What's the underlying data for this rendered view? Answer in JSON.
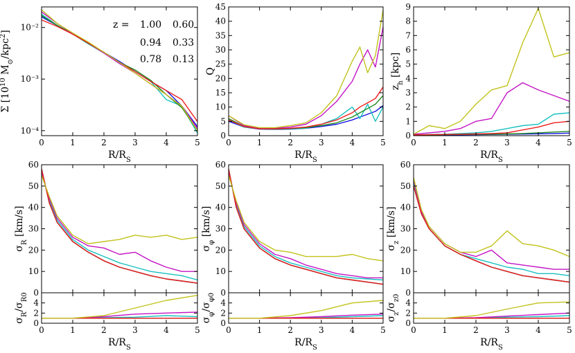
{
  "figure": {
    "xlabel": "R/R_S"
  },
  "legend": {
    "title": "z =",
    "entries": [
      {
        "label": "1.00",
        "color": "#1414e6"
      },
      {
        "label": "0.60",
        "color": "#18c0c0"
      },
      {
        "label": "0.94",
        "color": "#1f8a1f"
      },
      {
        "label": "0.33",
        "color": "#c414c4"
      },
      {
        "label": "0.78",
        "color": "#ee1c1c"
      },
      {
        "label": "0.13",
        "color": "#c2c21c"
      }
    ]
  },
  "chart_data": [
    {
      "id": "sigma",
      "type": "line",
      "ylabel": "Σ [10^10 M⊙/kpc²]",
      "xlim": [
        0,
        5
      ],
      "yscale": "log",
      "ylim": [
        8e-05,
        0.025
      ],
      "xticks": [
        0,
        1,
        2,
        3,
        4,
        5
      ],
      "yticks": [
        {
          "v": 0.0001,
          "label": "10⁻⁴"
        },
        {
          "v": 0.001,
          "label": "10⁻³"
        },
        {
          "v": 0.01,
          "label": "10⁻²"
        }
      ],
      "x": [
        0,
        0.5,
        1,
        1.5,
        2,
        2.5,
        3,
        3.5,
        4,
        4.5,
        5
      ],
      "series": [
        {
          "name": "1.00",
          "values": [
            0.016,
            0.011,
            0.0075,
            0.005,
            0.0033,
            0.0022,
            0.0014,
            0.0009,
            0.0006,
            0.0003,
            0.00012
          ]
        },
        {
          "name": "0.60",
          "values": [
            0.018,
            0.011,
            0.0075,
            0.0048,
            0.0032,
            0.002,
            0.0014,
            0.0009,
            0.0004,
            0.0003,
            9e-05
          ]
        },
        {
          "name": "0.94",
          "values": [
            0.017,
            0.011,
            0.0074,
            0.0049,
            0.0033,
            0.0021,
            0.0015,
            0.00095,
            0.0005,
            0.00028,
            0.0001
          ]
        },
        {
          "name": "0.33",
          "values": [
            0.02,
            0.012,
            0.0076,
            0.005,
            0.0032,
            0.002,
            0.0013,
            0.0008,
            0.0005,
            0.0003,
            0.00011
          ]
        },
        {
          "name": "0.78",
          "values": [
            0.014,
            0.0105,
            0.0074,
            0.005,
            0.0033,
            0.0021,
            0.0014,
            0.0009,
            0.0006,
            0.0004,
            0.00015
          ]
        },
        {
          "name": "0.13",
          "values": [
            0.022,
            0.012,
            0.0078,
            0.0052,
            0.0033,
            0.0021,
            0.0013,
            0.0008,
            0.0005,
            0.0003,
            0.0001
          ]
        }
      ]
    },
    {
      "id": "Q",
      "type": "line",
      "ylabel": "Q",
      "xlim": [
        0,
        5
      ],
      "ylim": [
        0,
        45
      ],
      "xticks": [
        0,
        1,
        2,
        3,
        4,
        5
      ],
      "yticks": [
        0,
        5,
        10,
        15,
        20,
        25,
        30,
        35,
        40,
        45
      ],
      "x": [
        0,
        0.5,
        1,
        1.5,
        2,
        2.5,
        3,
        3.5,
        4,
        4.25,
        4.5,
        4.75,
        5
      ],
      "series": [
        {
          "name": "1.00",
          "values": [
            5,
            3,
            2.3,
            2.2,
            2.3,
            2.6,
            3.2,
            4,
            5.5,
            6.5,
            7.5,
            8.5,
            10.5
          ]
        },
        {
          "name": "0.60",
          "values": [
            5.5,
            3,
            2.4,
            2.3,
            2.4,
            2.6,
            4,
            6,
            10,
            6,
            11,
            5,
            10
          ]
        },
        {
          "name": "0.94",
          "values": [
            6,
            3.2,
            2.4,
            2.3,
            2.5,
            2.8,
            3.5,
            4.5,
            6.5,
            8,
            9.5,
            11,
            14
          ]
        },
        {
          "name": "0.33",
          "values": [
            7,
            3.5,
            2.5,
            2.6,
            3,
            4,
            7,
            12,
            19,
            25,
            30,
            24,
            38
          ]
        },
        {
          "name": "0.78",
          "values": [
            5.5,
            3.2,
            2.4,
            2.4,
            2.6,
            3,
            4,
            5.5,
            8,
            10,
            11.5,
            13,
            17
          ]
        },
        {
          "name": "0.13",
          "values": [
            7,
            3.8,
            2.8,
            2.8,
            3.5,
            4.5,
            8,
            14,
            26,
            31,
            22,
            28,
            44
          ]
        }
      ]
    },
    {
      "id": "zh",
      "type": "line",
      "ylabel": "z_h [kpc]",
      "xlim": [
        0,
        5
      ],
      "ylim": [
        0,
        9
      ],
      "xticks": [
        0,
        1,
        2,
        3,
        4,
        5
      ],
      "yticks": [
        0,
        1,
        2,
        3,
        4,
        5,
        6,
        7,
        8,
        9
      ],
      "x": [
        0,
        0.5,
        1,
        1.5,
        2,
        2.5,
        3,
        3.5,
        4,
        4.5,
        5
      ],
      "series": [
        {
          "name": "1.00",
          "values": [
            0.05,
            0.05,
            0.06,
            0.06,
            0.07,
            0.08,
            0.1,
            0.11,
            0.13,
            0.15,
            0.18
          ]
        },
        {
          "name": "0.60",
          "values": [
            0.05,
            0.08,
            0.1,
            0.15,
            0.2,
            0.3,
            0.5,
            0.7,
            0.8,
            1.5,
            1.6
          ]
        },
        {
          "name": "0.94",
          "values": [
            0.05,
            0.06,
            0.07,
            0.08,
            0.09,
            0.1,
            0.12,
            0.15,
            0.2,
            0.25,
            0.3
          ]
        },
        {
          "name": "0.33",
          "values": [
            0.1,
            0.2,
            0.3,
            0.5,
            1,
            1.2,
            3,
            3.7,
            3.2,
            2.8,
            2.4
          ]
        },
        {
          "name": "0.78",
          "values": [
            0.05,
            0.07,
            0.08,
            0.1,
            0.12,
            0.15,
            0.2,
            0.4,
            0.6,
            0.9,
            1.0
          ]
        },
        {
          "name": "0.13",
          "values": [
            0.1,
            0.7,
            0.5,
            1,
            2.2,
            3.2,
            3.5,
            6.5,
            8.9,
            5.5,
            5.8
          ]
        }
      ]
    },
    {
      "id": "sigR",
      "type": "line",
      "ylabel": "σ_R [km/s]",
      "xlim": [
        0,
        5
      ],
      "ylim": [
        0,
        60
      ],
      "xticks": [
        0,
        1,
        2,
        3,
        4,
        5
      ],
      "yticks": [
        0,
        10,
        20,
        30,
        40,
        50,
        60
      ],
      "x": [
        0,
        0.25,
        0.5,
        1,
        1.5,
        2,
        2.5,
        3,
        3.5,
        4,
        4.5,
        5
      ],
      "series": [
        {
          "name": "1.00",
          "values": [
            58,
            42,
            33,
            24,
            19,
            15,
            12,
            10,
            8,
            6.5,
            5.5,
            4.5
          ]
        },
        {
          "name": "0.60",
          "values": [
            57,
            43,
            34,
            25,
            20,
            17,
            14,
            12,
            10,
            9,
            8,
            6
          ]
        },
        {
          "name": "0.94",
          "values": [
            58,
            42,
            33,
            24,
            19,
            15,
            12,
            10,
            8,
            6.5,
            5.5,
            4.5
          ]
        },
        {
          "name": "0.33",
          "values": [
            56,
            44,
            35,
            26,
            22,
            21,
            18,
            19,
            15,
            12,
            10,
            10
          ]
        },
        {
          "name": "0.78",
          "values": [
            58,
            42,
            33,
            24,
            19,
            15,
            12,
            10,
            8,
            6.5,
            5.5,
            4.5
          ]
        },
        {
          "name": "0.13",
          "values": [
            55,
            45,
            36,
            27,
            23,
            24,
            25,
            27,
            26,
            27,
            25,
            26
          ]
        }
      ]
    },
    {
      "id": "sigRratio",
      "type": "line",
      "ylabel": "σ_R/σ_R0",
      "xlim": [
        0,
        5
      ],
      "ylim": [
        0,
        6
      ],
      "xticks": [
        0,
        1,
        2,
        3,
        4,
        5
      ],
      "yticks": [
        0,
        2,
        4
      ],
      "x": [
        0,
        1,
        2,
        3,
        4,
        5
      ],
      "series": [
        {
          "name": "1.00",
          "values": [
            1,
            1,
            1,
            1,
            1,
            1
          ]
        },
        {
          "name": "0.60",
          "values": [
            1,
            1,
            1.1,
            1.2,
            1.5,
            1.3
          ]
        },
        {
          "name": "0.94",
          "values": [
            1,
            1,
            1,
            1,
            1,
            1
          ]
        },
        {
          "name": "0.33",
          "values": [
            1,
            1,
            1.3,
            1.8,
            2,
            2.2
          ]
        },
        {
          "name": "0.78",
          "values": [
            1,
            1,
            1,
            1,
            1,
            1
          ]
        },
        {
          "name": "0.13",
          "values": [
            1,
            1,
            1.5,
            3,
            4.5,
            5.5
          ]
        }
      ]
    },
    {
      "id": "sigPhi",
      "type": "line",
      "ylabel": "σ_φ [km/s]",
      "xlim": [
        0,
        5
      ],
      "ylim": [
        0,
        60
      ],
      "xticks": [
        0,
        1,
        2,
        3,
        4,
        5
      ],
      "yticks": [
        0,
        10,
        20,
        30,
        40,
        50,
        60
      ],
      "x": [
        0,
        0.25,
        0.5,
        1,
        1.5,
        2,
        2.5,
        3,
        3.5,
        4,
        4.5,
        5
      ],
      "series": [
        {
          "name": "1.00",
          "values": [
            58,
            40,
            30,
            21,
            16,
            13,
            11,
            9,
            7,
            6,
            5,
            4
          ]
        },
        {
          "name": "0.60",
          "values": [
            57,
            41,
            31,
            22,
            17,
            14,
            12,
            10,
            8,
            7,
            6.5,
            6
          ]
        },
        {
          "name": "0.94",
          "values": [
            58,
            40,
            30,
            21,
            16,
            13,
            11,
            9,
            7,
            6,
            5,
            4
          ]
        },
        {
          "name": "0.33",
          "values": [
            56,
            42,
            32,
            23,
            18,
            16,
            13,
            11,
            9,
            8,
            7,
            7
          ]
        },
        {
          "name": "0.78",
          "values": [
            58,
            40,
            30,
            21,
            16,
            13,
            11,
            9,
            7,
            6,
            5,
            4
          ]
        },
        {
          "name": "0.13",
          "values": [
            55,
            43,
            33,
            24,
            20,
            19,
            17,
            17,
            17,
            18,
            16,
            15
          ]
        }
      ]
    },
    {
      "id": "sigPhiRatio",
      "type": "line",
      "ylabel": "σ_φ/σ_φ0",
      "xlim": [
        0,
        5
      ],
      "ylim": [
        0,
        6
      ],
      "xticks": [
        0,
        1,
        2,
        3,
        4,
        5
      ],
      "yticks": [
        0,
        2,
        4
      ],
      "x": [
        0,
        1,
        2,
        3,
        4,
        5
      ],
      "series": [
        {
          "name": "1.00",
          "values": [
            1,
            1,
            1,
            1,
            1,
            1
          ]
        },
        {
          "name": "0.60",
          "values": [
            1,
            1,
            1,
            1.1,
            1.3,
            1.5
          ]
        },
        {
          "name": "0.94",
          "values": [
            1,
            1,
            1,
            1,
            1,
            1
          ]
        },
        {
          "name": "0.33",
          "values": [
            1,
            1,
            1.1,
            1.3,
            1.6,
            1.8
          ]
        },
        {
          "name": "0.78",
          "values": [
            1,
            1,
            1,
            1,
            1,
            1
          ]
        },
        {
          "name": "0.13",
          "values": [
            1,
            1,
            1.5,
            2.5,
            4,
            4.5
          ]
        }
      ]
    },
    {
      "id": "sigZ",
      "type": "line",
      "ylabel": "σ_z [km/s]",
      "xlim": [
        0,
        5
      ],
      "ylim": [
        0,
        60
      ],
      "xticks": [
        0,
        1,
        2,
        3,
        4,
        5
      ],
      "yticks": [
        0,
        10,
        20,
        30,
        40,
        50,
        60
      ],
      "x": [
        0,
        0.25,
        0.5,
        1,
        1.5,
        2,
        2.5,
        3,
        3.5,
        4,
        4.5,
        5
      ],
      "series": [
        {
          "name": "1.00",
          "values": [
            50,
            37,
            30,
            22,
            18,
            15,
            12,
            10,
            8,
            7,
            6,
            5
          ]
        },
        {
          "name": "0.60",
          "values": [
            52,
            38,
            30,
            22,
            18,
            16,
            14,
            12,
            11,
            9,
            9,
            8
          ]
        },
        {
          "name": "0.94",
          "values": [
            50,
            37,
            30,
            22,
            18,
            15,
            12,
            10,
            8,
            7,
            6,
            5
          ]
        },
        {
          "name": "0.33",
          "values": [
            53,
            38,
            31,
            23,
            19,
            17,
            20,
            14,
            13,
            12,
            11,
            11
          ]
        },
        {
          "name": "0.78",
          "values": [
            50,
            37,
            30,
            22,
            18,
            15,
            12,
            10,
            8,
            7,
            6,
            5
          ]
        },
        {
          "name": "0.13",
          "values": [
            54,
            39,
            31,
            23,
            19,
            19,
            22,
            29,
            23,
            22,
            20,
            17
          ]
        }
      ]
    },
    {
      "id": "sigZRatio",
      "type": "line",
      "ylabel": "σ_z/σ_z0",
      "xlim": [
        0,
        5
      ],
      "ylim": [
        0,
        6
      ],
      "xticks": [
        0,
        1,
        2,
        3,
        4,
        5
      ],
      "yticks": [
        0,
        2,
        4
      ],
      "x": [
        0,
        1,
        2,
        3,
        4,
        5
      ],
      "series": [
        {
          "name": "1.00",
          "values": [
            1,
            1,
            1,
            1,
            1,
            1
          ]
        },
        {
          "name": "0.60",
          "values": [
            1,
            1,
            1,
            1.2,
            1.3,
            1.5
          ]
        },
        {
          "name": "0.94",
          "values": [
            1,
            1,
            1,
            1,
            1,
            1
          ]
        },
        {
          "name": "0.33",
          "values": [
            1,
            1,
            1.1,
            1.4,
            1.7,
            2
          ]
        },
        {
          "name": "0.78",
          "values": [
            1,
            1,
            1,
            1,
            1,
            1
          ]
        },
        {
          "name": "0.13",
          "values": [
            1,
            1,
            1.5,
            2.8,
            4,
            4.2
          ]
        }
      ]
    }
  ]
}
